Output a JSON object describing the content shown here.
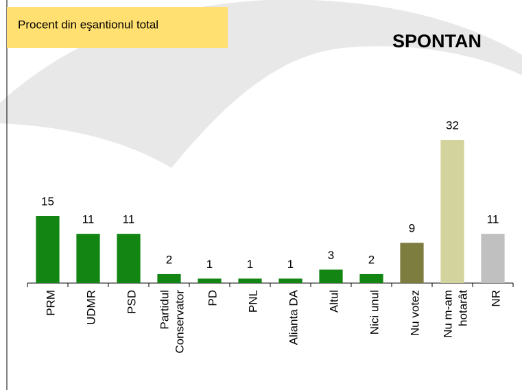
{
  "chart_data": {
    "type": "bar",
    "title": "SPONTAN",
    "subtitle": "Procent din eşantionul total",
    "categories": [
      "PRM",
      "UDMR",
      "PSD",
      "Partidul\nConservator",
      "PD",
      "PNL",
      "Alianta DA",
      "Altul",
      "Nici unul",
      "Nu votez",
      "Nu m-am\nhotarât",
      "NR"
    ],
    "values": [
      15,
      11,
      11,
      2,
      1,
      1,
      1,
      3,
      2,
      9,
      32,
      11
    ],
    "colors": [
      "#128512",
      "#128512",
      "#128512",
      "#128512",
      "#128512",
      "#128512",
      "#128512",
      "#128512",
      "#128512",
      "#7d7d40",
      "#d3d39d",
      "#c0c0c0"
    ]
  }
}
